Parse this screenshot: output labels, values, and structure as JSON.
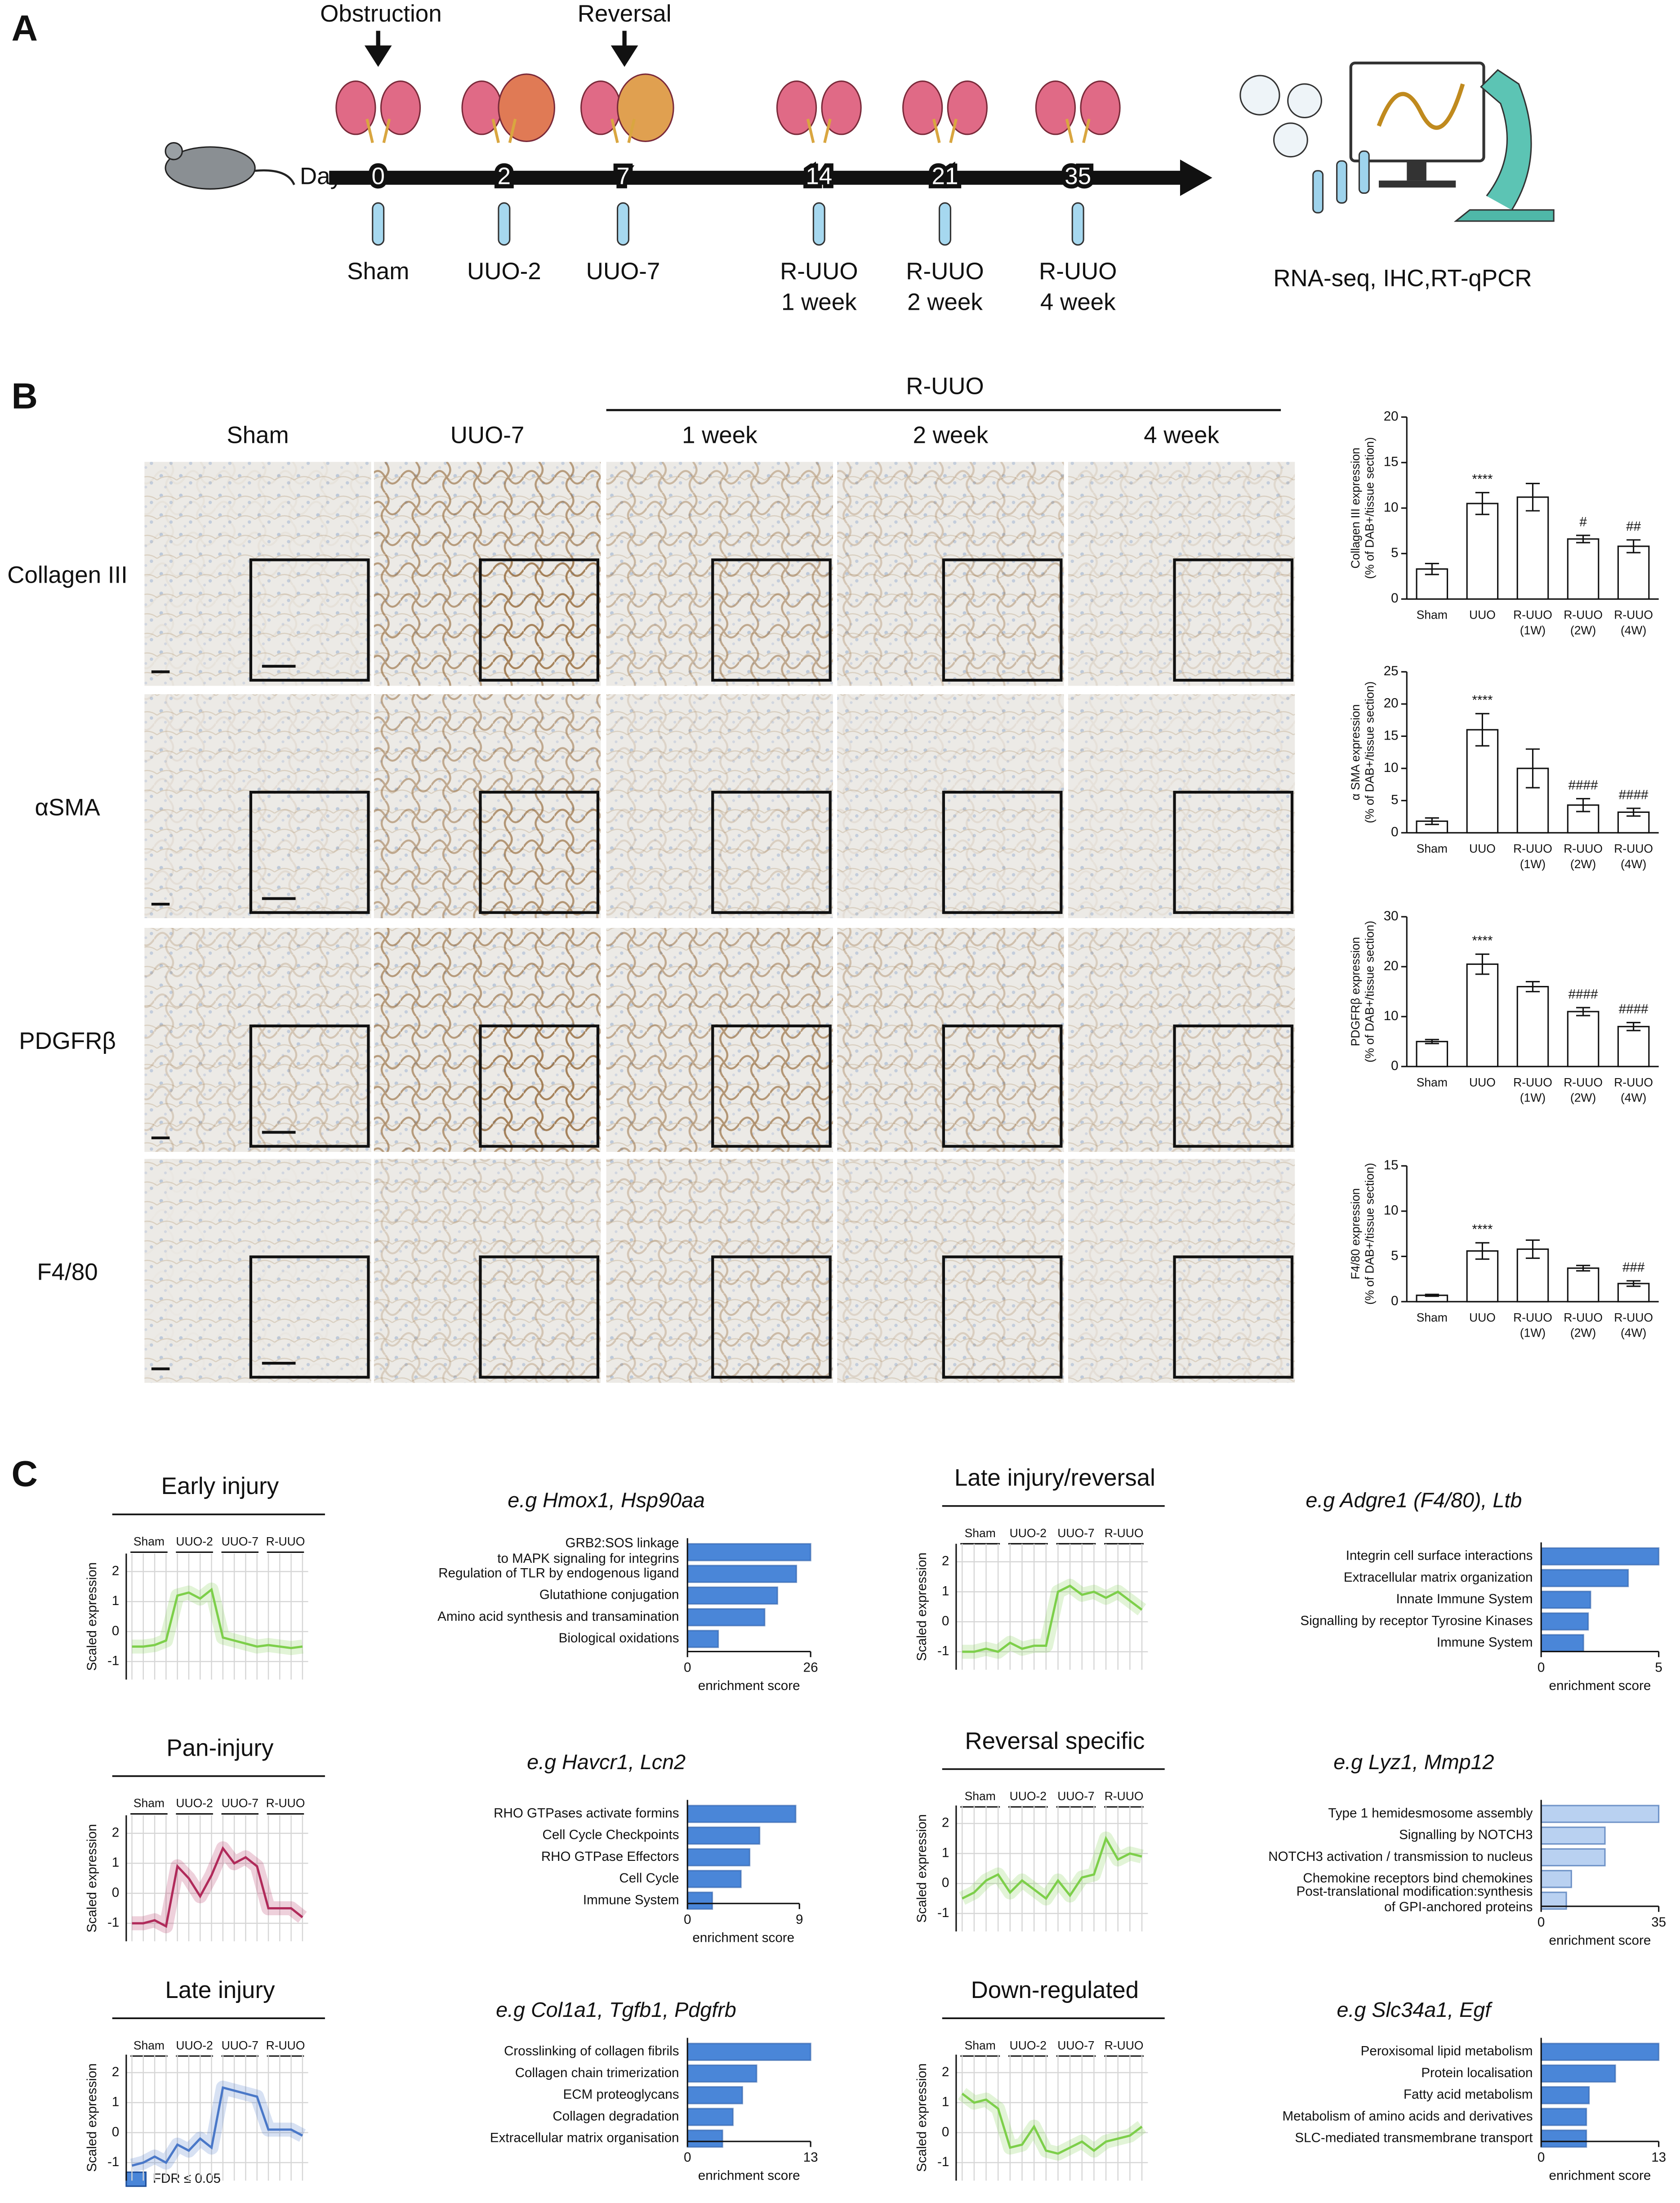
{
  "panel_a": {
    "letter": "A",
    "events": [
      "Obstruction",
      "Reversal"
    ],
    "day_label": "Day",
    "timepoints": [
      {
        "day": 0,
        "label": [
          "Sham"
        ]
      },
      {
        "day": 2,
        "label": [
          "UUO-2"
        ]
      },
      {
        "day": 7,
        "label": [
          "UUO-7"
        ]
      },
      {
        "day": 14,
        "label": [
          "R-UUO",
          "1 week"
        ]
      },
      {
        "day": 21,
        "label": [
          "R-UUO",
          "2 week"
        ]
      },
      {
        "day": 35,
        "label": [
          "R-UUO",
          "4 week"
        ]
      }
    ],
    "methods": "RNA-seq, IHC,RT-qPCR"
  },
  "panel_b": {
    "letter": "B",
    "column_group": "R-UUO",
    "columns": [
      "Sham",
      "UUO-7",
      "1 week",
      "2 week",
      "4 week"
    ],
    "rows": [
      "Collagen III",
      "αSMA",
      "PDGFRβ",
      "F4/80"
    ]
  },
  "panel_c": {
    "letter": "C",
    "legend": {
      "label": "FDR ≤ 0.05",
      "color": "#4a86d8"
    }
  },
  "chart_data": [
    {
      "type": "bar",
      "ylabel": [
        "Collagen III expression",
        "(% of DAB+/tissue section)"
      ],
      "categories": [
        "Sham",
        "UUO",
        "R-UUO",
        "R-UUO",
        "R-UUO"
      ],
      "category_sublabels": [
        null,
        null,
        "(1W)",
        "(2W)",
        "(4W)"
      ],
      "values": [
        3.3,
        10.5,
        11.2,
        6.6,
        5.8
      ],
      "errors": [
        0.6,
        1.2,
        1.5,
        0.4,
        0.7
      ],
      "annotations": [
        null,
        "****",
        null,
        "#",
        "##"
      ],
      "ylim": [
        0,
        20
      ],
      "yticks": [
        0,
        5,
        10,
        15,
        20
      ]
    },
    {
      "type": "bar",
      "ylabel": [
        "α SMA expression",
        "(% of DAB+/tissue section)"
      ],
      "categories": [
        "Sham",
        "UUO",
        "R-UUO",
        "R-UUO",
        "R-UUO"
      ],
      "category_sublabels": [
        null,
        null,
        "(1W)",
        "(2W)",
        "(4W)"
      ],
      "values": [
        1.8,
        16,
        10,
        4.3,
        3.2
      ],
      "errors": [
        0.5,
        2.5,
        3,
        1,
        0.6
      ],
      "annotations": [
        null,
        "****",
        null,
        "####",
        "####"
      ],
      "ylim": [
        0,
        25
      ],
      "yticks": [
        0,
        5,
        10,
        15,
        20,
        25
      ]
    },
    {
      "type": "bar",
      "ylabel": [
        "PDGFRβ expression",
        "(% of DAB+/tissue section)"
      ],
      "categories": [
        "Sham",
        "UUO",
        "R-UUO",
        "R-UUO",
        "R-UUO"
      ],
      "category_sublabels": [
        null,
        null,
        "(1W)",
        "(2W)",
        "(4W)"
      ],
      "values": [
        5,
        20.5,
        16,
        11,
        8
      ],
      "errors": [
        0.4,
        2,
        1,
        0.8,
        0.8
      ],
      "annotations": [
        null,
        "****",
        null,
        "####",
        "####"
      ],
      "ylim": [
        0,
        30
      ],
      "yticks": [
        0,
        10,
        20,
        30
      ]
    },
    {
      "type": "bar",
      "ylabel": [
        "F4/80 expression",
        "(% of DAB+/tissue section)"
      ],
      "categories": [
        "Sham",
        "UUO",
        "R-UUO",
        "R-UUO",
        "R-UUO"
      ],
      "category_sublabels": [
        null,
        null,
        "(1W)",
        "(2W)",
        "(4W)"
      ],
      "values": [
        0.7,
        5.6,
        5.8,
        3.7,
        2
      ],
      "errors": [
        0.1,
        0.9,
        1,
        0.3,
        0.3
      ],
      "annotations": [
        null,
        "****",
        null,
        null,
        "###"
      ],
      "ylim": [
        0,
        15
      ],
      "yticks": [
        0,
        5,
        10,
        15
      ]
    },
    {
      "type": "line",
      "title": "Early injury",
      "groups": [
        "Sham",
        "UUO-2",
        "UUO-7",
        "R-UUO"
      ],
      "ylabel": "Scaled expression",
      "color": "#7dcf4a",
      "values": [
        -0.5,
        -0.5,
        -0.45,
        -0.3,
        1.2,
        1.3,
        1.1,
        1.4,
        -0.2,
        -0.3,
        -0.4,
        -0.5,
        -0.45,
        -0.5,
        -0.55,
        -0.5
      ],
      "ylim": [
        -1.6,
        2.6
      ],
      "yticks": [
        2,
        1,
        0,
        -1
      ]
    },
    {
      "type": "hbar",
      "title": "e.g Hmox1, Hsp90aa",
      "color": "#4a86d8",
      "categories": [
        [
          "GRB2:SOS linkage",
          "to MAPK signaling for integrins"
        ],
        [
          "Regulation of TLR by endogenous ligand"
        ],
        [
          "Glutathione conjugation"
        ],
        [
          "Amino acid synthesis and transamination"
        ],
        [
          "Biological oxidations"
        ]
      ],
      "values": [
        26,
        23,
        19,
        16.3,
        6.5
      ],
      "xlim": [
        0,
        26
      ],
      "xticks": [
        0,
        26
      ],
      "xlabel": "enrichment score"
    },
    {
      "type": "line",
      "title": "Late injury/reversal",
      "groups": [
        "Sham",
        "UUO-2",
        "UUO-7",
        "R-UUO"
      ],
      "ylabel": "Scaled expression",
      "color": "#7dcf4a",
      "values": [
        -1,
        -1,
        -0.9,
        -1,
        -0.7,
        -0.9,
        -0.8,
        -0.8,
        1.0,
        1.2,
        0.9,
        1.0,
        0.8,
        1.0,
        0.7,
        0.4
      ],
      "ylim": [
        -1.6,
        2.6
      ],
      "yticks": [
        2,
        1,
        0,
        -1
      ]
    },
    {
      "type": "hbar",
      "title": "e.g Adgre1 (F4/80), Ltb",
      "color": "#4a86d8",
      "categories": [
        [
          "Integrin cell surface interactions"
        ],
        [
          "Extracellular matrix organization"
        ],
        [
          "Innate Immune System"
        ],
        [
          "Signalling by receptor Tyrosine Kinases"
        ],
        [
          "Immune System"
        ]
      ],
      "values": [
        5,
        3.7,
        2.1,
        2.0,
        1.8
      ],
      "xlim": [
        0,
        5
      ],
      "xticks": [
        0,
        5
      ],
      "xlabel": "enrichment score"
    },
    {
      "type": "line",
      "title": "Pan-injury",
      "groups": [
        "Sham",
        "UUO-2",
        "UUO-7",
        "R-UUO"
      ],
      "ylabel": "Scaled expression",
      "color": "#b02a5a",
      "values": [
        -1,
        -1,
        -0.9,
        -1.1,
        0.9,
        0.5,
        -0.1,
        0.6,
        1.5,
        1.0,
        1.2,
        0.9,
        -0.5,
        -0.5,
        -0.5,
        -0.8
      ],
      "ylim": [
        -1.6,
        2.6
      ],
      "yticks": [
        2,
        1,
        0,
        -1
      ]
    },
    {
      "type": "hbar",
      "title": "e.g Havcr1, Lcn2",
      "color": "#4a86d8",
      "categories": [
        [
          "RHO GTPases activate formins"
        ],
        [
          "Cell Cycle Checkpoints"
        ],
        [
          "RHO GTPase Effectors"
        ],
        [
          "Cell Cycle"
        ],
        [
          "Immune System"
        ]
      ],
      "values": [
        8.7,
        5.8,
        5.0,
        4.3,
        2.0
      ],
      "xlim": [
        0,
        9
      ],
      "xticks": [
        0,
        9
      ],
      "xlabel": "enrichment score"
    },
    {
      "type": "line",
      "title": "Reversal specific",
      "groups": [
        "Sham",
        "UUO-2",
        "UUO-7",
        "R-UUO"
      ],
      "ylabel": "Scaled expression",
      "color": "#7dcf4a",
      "values": [
        -0.5,
        -0.3,
        0.1,
        0.3,
        -0.3,
        0.1,
        -0.2,
        -0.5,
        0.1,
        -0.4,
        0.2,
        0.3,
        1.5,
        0.8,
        1.0,
        0.9
      ],
      "ylim": [
        -1.6,
        2.6
      ],
      "yticks": [
        2,
        1,
        0,
        -1
      ]
    },
    {
      "type": "hbar",
      "title": "e.g Lyz1, Mmp12",
      "color": "#b9d1f1",
      "categories": [
        [
          "Type 1 hemidesmosome assembly"
        ],
        [
          "Signalling by NOTCH3"
        ],
        [
          "NOTCH3 activation / transmission to nucleus"
        ],
        [
          "Chemokine receptors bind chemokines"
        ],
        [
          "Post-translational modification:synthesis",
          "of GPI-anchored proteins"
        ]
      ],
      "values": [
        35,
        19,
        19,
        9,
        7.5
      ],
      "xlim": [
        0,
        35
      ],
      "xticks": [
        0,
        35
      ],
      "xlabel": "enrichment score"
    },
    {
      "type": "line",
      "title": "Late injury",
      "groups": [
        "Sham",
        "UUO-2",
        "UUO-7",
        "R-UUO"
      ],
      "ylabel": "Scaled expression",
      "color": "#4a78c8",
      "values": [
        -1.1,
        -1.0,
        -0.8,
        -1.0,
        -0.4,
        -0.6,
        -0.2,
        -0.5,
        1.5,
        1.4,
        1.3,
        1.2,
        0.1,
        0.1,
        0.1,
        -0.1
      ],
      "ylim": [
        -1.6,
        2.6
      ],
      "yticks": [
        2,
        1,
        0,
        -1
      ]
    },
    {
      "type": "hbar",
      "title": "e.g Col1a1, Tgfb1, Pdgfrb",
      "color": "#4a86d8",
      "categories": [
        [
          "Crosslinking of collagen fibrils"
        ],
        [
          "Collagen chain trimerization"
        ],
        [
          "ECM proteoglycans"
        ],
        [
          "Collagen degradation"
        ],
        [
          "Extracellular matrix organisation"
        ]
      ],
      "values": [
        13,
        7.3,
        5.8,
        4.8,
        3.7
      ],
      "xlim": [
        0,
        13
      ],
      "xticks": [
        0,
        13
      ],
      "xlabel": "enrichment score"
    },
    {
      "type": "line",
      "title": "Down-regulated",
      "groups": [
        "Sham",
        "UUO-2",
        "UUO-7",
        "R-UUO"
      ],
      "ylabel": "Scaled expression",
      "color": "#7dcf4a",
      "values": [
        1.3,
        1.0,
        1.1,
        0.8,
        -0.5,
        -0.4,
        0.2,
        -0.6,
        -0.7,
        -0.5,
        -0.3,
        -0.6,
        -0.3,
        -0.2,
        -0.1,
        0.2
      ],
      "ylim": [
        -1.6,
        2.6
      ],
      "yticks": [
        2,
        1,
        0,
        -1
      ]
    },
    {
      "type": "hbar",
      "title": "e.g Slc34a1, Egf",
      "color": "#4a86d8",
      "categories": [
        [
          "Peroxisomal lipid metabolism"
        ],
        [
          "Protein localisation"
        ],
        [
          "Fatty acid metabolism"
        ],
        [
          "Metabolism of amino acids and derivatives"
        ],
        [
          "SLC-mediated transmembrane transport"
        ]
      ],
      "values": [
        13,
        8.2,
        5.3,
        5.0,
        5.0
      ],
      "xlim": [
        0,
        13
      ],
      "xticks": [
        0,
        13
      ],
      "xlabel": "enrichment score"
    }
  ]
}
